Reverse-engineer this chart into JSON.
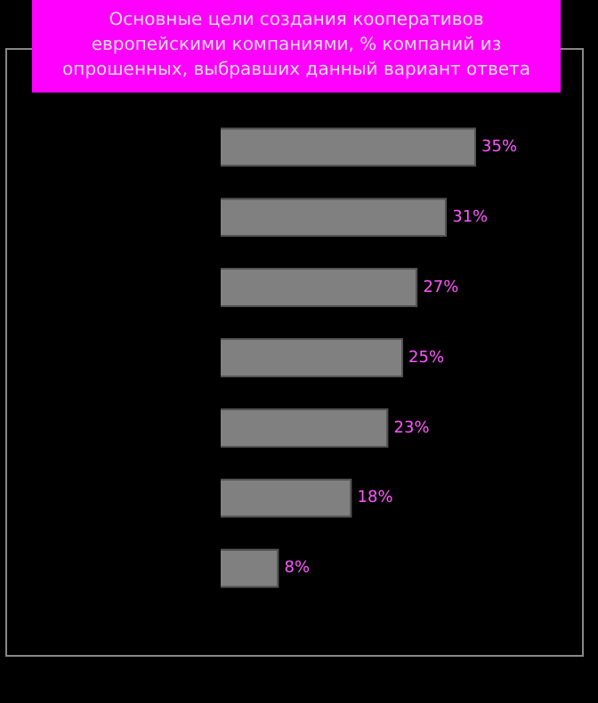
{
  "chart_data": {
    "type": "bar",
    "orientation": "horizontal",
    "title": "Основные цели создания кооперативов европейскими компаниями, % компаний из опрошенных, выбравших данный вариант ответа",
    "categories": [
      null,
      null,
      null,
      null,
      null,
      null,
      null
    ],
    "values": [
      35,
      31,
      27,
      25,
      23,
      18,
      8
    ],
    "value_labels": [
      "35%",
      "31%",
      "27%",
      "25%",
      "23%",
      "18%",
      "8%"
    ],
    "color": "#808080"
  }
}
